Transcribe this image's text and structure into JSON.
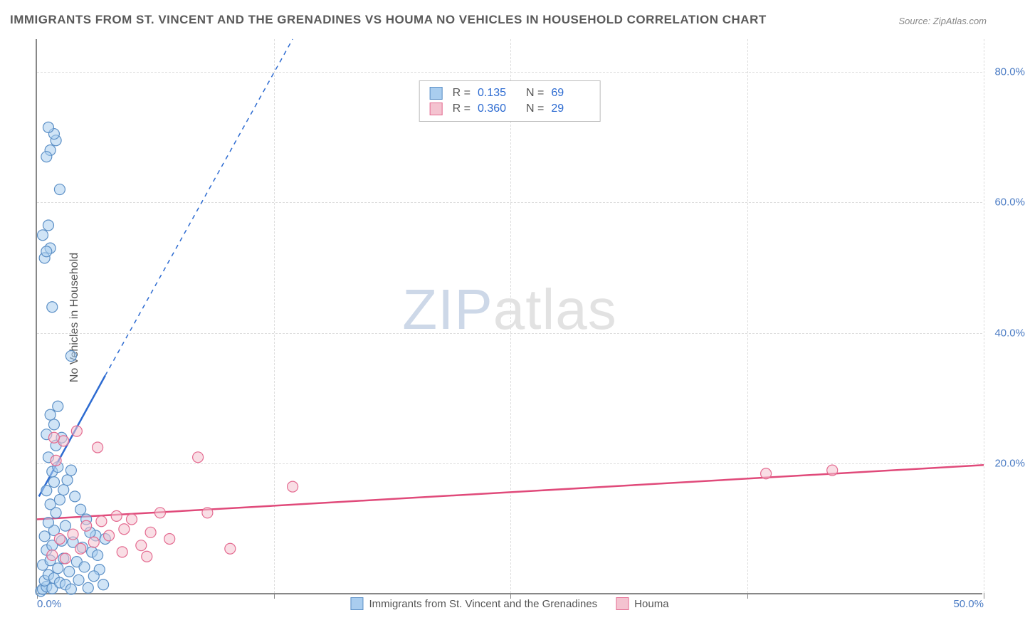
{
  "title": "IMMIGRANTS FROM ST. VINCENT AND THE GRENADINES VS HOUMA NO VEHICLES IN HOUSEHOLD CORRELATION CHART",
  "source": "Source: ZipAtlas.com",
  "y_axis_title": "No Vehicles in Household",
  "watermark_a": "ZIP",
  "watermark_b": "atlas",
  "chart": {
    "type": "scatter",
    "xlim": [
      0,
      50
    ],
    "ylim": [
      0,
      85
    ],
    "x_ticks": [
      0,
      12.5,
      25,
      37.5,
      50
    ],
    "x_tick_labels": [
      "0.0%",
      "",
      "",
      "",
      "50.0%"
    ],
    "y_ticks": [
      20,
      40,
      60,
      80
    ],
    "y_tick_labels": [
      "20.0%",
      "40.0%",
      "60.0%",
      "80.0%"
    ],
    "grid_color": "#dddddd",
    "axis_color": "#888888",
    "label_color": "#4a7bc4",
    "background_color": "#ffffff",
    "marker_radius": 7.5,
    "marker_opacity": 0.55,
    "series": [
      {
        "name": "Immigrants from St. Vincent and the Grenadines",
        "marker_fill": "#a9cdef",
        "marker_stroke": "#5b8fc6",
        "line_color": "#2d6bd1",
        "r_value": "0.135",
        "n_value": "69",
        "regression": {
          "x1": 0.1,
          "y1": 15.0,
          "x2": 3.6,
          "y2": 33.5,
          "extend_x": 13.5,
          "extend_y": 85.0
        },
        "points": [
          [
            0.2,
            0.5
          ],
          [
            0.3,
            0.8
          ],
          [
            0.5,
            1.2
          ],
          [
            0.8,
            0.9
          ],
          [
            0.4,
            2.1
          ],
          [
            0.6,
            3.0
          ],
          [
            0.9,
            2.5
          ],
          [
            1.2,
            1.8
          ],
          [
            0.3,
            4.5
          ],
          [
            0.7,
            5.2
          ],
          [
            1.1,
            4.0
          ],
          [
            0.5,
            6.8
          ],
          [
            0.8,
            7.5
          ],
          [
            1.4,
            5.5
          ],
          [
            0.4,
            8.9
          ],
          [
            0.9,
            9.8
          ],
          [
            1.3,
            8.2
          ],
          [
            0.6,
            11.0
          ],
          [
            1.0,
            12.5
          ],
          [
            1.5,
            10.5
          ],
          [
            0.7,
            13.8
          ],
          [
            1.2,
            14.5
          ],
          [
            0.5,
            15.9
          ],
          [
            0.9,
            17.2
          ],
          [
            1.4,
            16.0
          ],
          [
            0.8,
            18.8
          ],
          [
            1.1,
            19.5
          ],
          [
            0.6,
            21.0
          ],
          [
            1.0,
            22.8
          ],
          [
            1.6,
            17.5
          ],
          [
            2.0,
            15.0
          ],
          [
            1.8,
            19.0
          ],
          [
            2.3,
            13.0
          ],
          [
            2.6,
            11.5
          ],
          [
            3.1,
            9.0
          ],
          [
            0.5,
            24.5
          ],
          [
            0.9,
            26.0
          ],
          [
            1.3,
            24.0
          ],
          [
            0.7,
            27.5
          ],
          [
            1.1,
            28.8
          ],
          [
            1.8,
            36.5
          ],
          [
            0.8,
            44.0
          ],
          [
            0.4,
            51.5
          ],
          [
            0.7,
            53.0
          ],
          [
            0.5,
            52.5
          ],
          [
            0.3,
            55.0
          ],
          [
            0.6,
            56.5
          ],
          [
            1.2,
            62.0
          ],
          [
            0.7,
            68.0
          ],
          [
            1.0,
            69.5
          ],
          [
            0.9,
            70.5
          ],
          [
            0.6,
            71.5
          ],
          [
            0.5,
            67.0
          ],
          [
            1.7,
            3.5
          ],
          [
            2.1,
            5.0
          ],
          [
            2.5,
            4.2
          ],
          [
            2.9,
            6.5
          ],
          [
            3.3,
            3.8
          ],
          [
            1.9,
            8.0
          ],
          [
            2.4,
            7.2
          ],
          [
            2.8,
            9.5
          ],
          [
            3.2,
            6.0
          ],
          [
            3.6,
            8.5
          ],
          [
            1.5,
            1.5
          ],
          [
            1.8,
            0.8
          ],
          [
            2.2,
            2.2
          ],
          [
            2.7,
            1.0
          ],
          [
            3.0,
            2.8
          ],
          [
            3.5,
            1.5
          ]
        ]
      },
      {
        "name": "Houma",
        "marker_fill": "#f4c3d0",
        "marker_stroke": "#e46a90",
        "line_color": "#e04a7a",
        "r_value": "0.360",
        "n_value": "29",
        "regression": {
          "x1": 0.0,
          "y1": 11.5,
          "x2": 50.0,
          "y2": 19.8
        },
        "points": [
          [
            0.8,
            6.0
          ],
          [
            1.2,
            8.5
          ],
          [
            1.5,
            5.5
          ],
          [
            1.9,
            9.2
          ],
          [
            2.3,
            7.0
          ],
          [
            2.6,
            10.5
          ],
          [
            3.0,
            8.0
          ],
          [
            3.4,
            11.2
          ],
          [
            3.8,
            9.0
          ],
          [
            4.2,
            12.0
          ],
          [
            4.6,
            10.0
          ],
          [
            5.0,
            11.5
          ],
          [
            5.5,
            7.5
          ],
          [
            6.0,
            9.5
          ],
          [
            6.5,
            12.5
          ],
          [
            7.0,
            8.5
          ],
          [
            3.2,
            22.5
          ],
          [
            2.1,
            25.0
          ],
          [
            1.4,
            23.5
          ],
          [
            0.9,
            24.0
          ],
          [
            8.5,
            21.0
          ],
          [
            10.2,
            7.0
          ],
          [
            13.5,
            16.5
          ],
          [
            9.0,
            12.5
          ],
          [
            38.5,
            18.5
          ],
          [
            42.0,
            19.0
          ],
          [
            4.5,
            6.5
          ],
          [
            5.8,
            5.8
          ],
          [
            1.0,
            20.5
          ]
        ]
      }
    ]
  },
  "legend_bottom": [
    "Immigrants from St. Vincent and the Grenadines",
    "Houma"
  ]
}
